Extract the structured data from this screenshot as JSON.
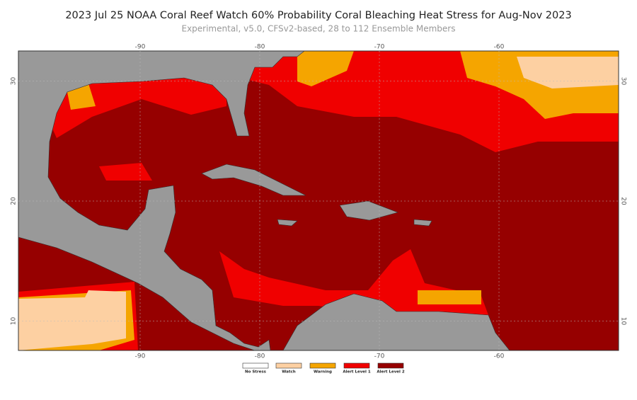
{
  "title": "2023 Jul 25 NOAA Coral Reef Watch 60% Probability Coral Bleaching Heat Stress for Aug-Nov 2023",
  "subtitle": "Experimental, v5.0, CFSv2-based, 28 to 112 Ensemble Members",
  "map": {
    "xticks": [
      -90,
      -80,
      -70,
      -60
    ],
    "yticks": [
      30,
      20,
      10
    ]
  },
  "legend": [
    {
      "label": "No Stress",
      "color": "#ffffff"
    },
    {
      "label": "Watch",
      "color": "#fdd0a2"
    },
    {
      "label": "Warning",
      "color": "#f5a500"
    },
    {
      "label": "Alert Level 1",
      "color": "#f00000"
    },
    {
      "label": "Alert Level 2",
      "color": "#960000"
    }
  ]
}
